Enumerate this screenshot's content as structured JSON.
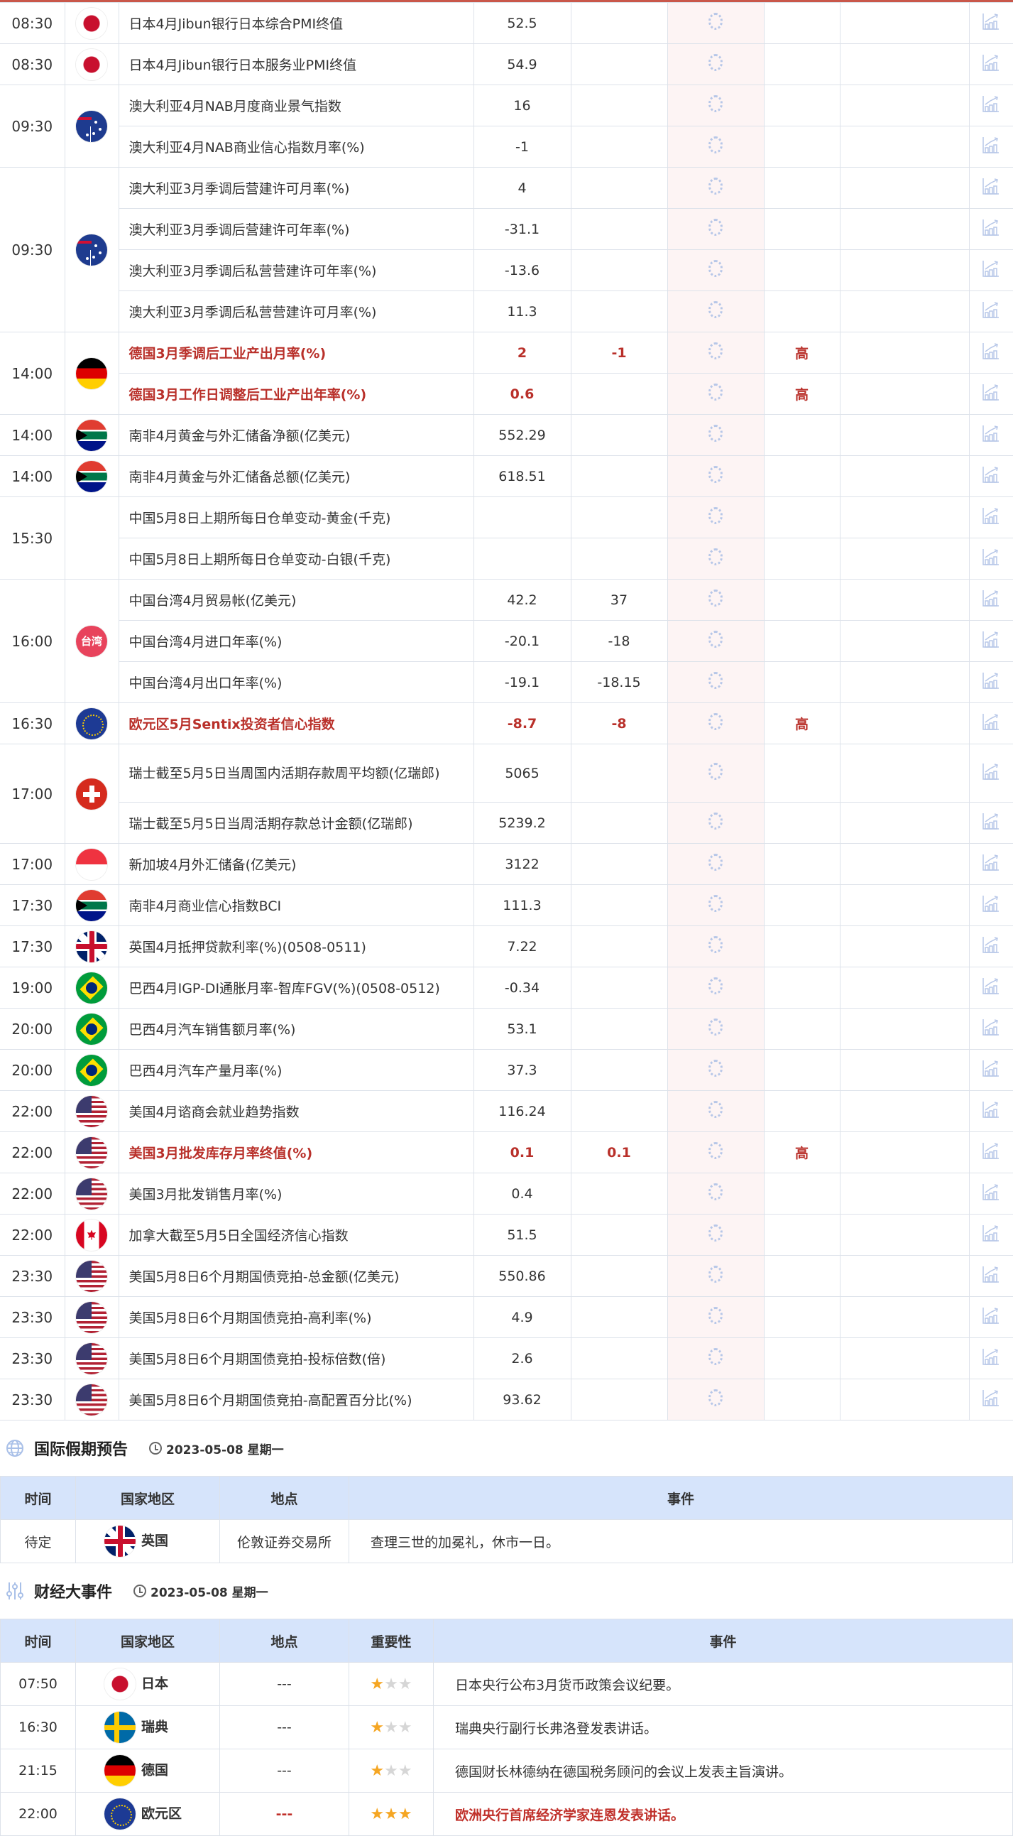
{
  "colors": {
    "accent": "#c9574a",
    "highlight": "#b9302a",
    "header_bg": "#d6e4fb",
    "star_on": "#f5a623",
    "star_off": "#d6d6d6"
  },
  "calendar": {
    "groups": [
      {
        "time": "08:30",
        "flag": "jp",
        "rows": [
          {
            "event": "日本4月Jibun银行日本综合PMI终值",
            "actual": "52.5",
            "forecast": "",
            "importance": ""
          }
        ]
      },
      {
        "time": "08:30",
        "flag": "jp",
        "rows": [
          {
            "event": "日本4月Jibun银行日本服务业PMI终值",
            "actual": "54.9",
            "forecast": "",
            "importance": ""
          }
        ]
      },
      {
        "time": "09:30",
        "flag": "au",
        "rows": [
          {
            "event": "澳大利亚4月NAB月度商业景气指数",
            "actual": "16",
            "forecast": "",
            "importance": ""
          },
          {
            "event": "澳大利亚4月NAB商业信心指数月率(%)",
            "actual": "-1",
            "forecast": "",
            "importance": ""
          }
        ]
      },
      {
        "time": "09:30",
        "flag": "au",
        "rows": [
          {
            "event": "澳大利亚3月季调后营建许可月率(%)",
            "actual": "4",
            "forecast": "",
            "importance": ""
          },
          {
            "event": "澳大利亚3月季调后营建许可年率(%)",
            "actual": "-31.1",
            "forecast": "",
            "importance": ""
          },
          {
            "event": "澳大利亚3月季调后私营营建许可年率(%)",
            "actual": "-13.6",
            "forecast": "",
            "importance": ""
          },
          {
            "event": "澳大利亚3月季调后私营营建许可月率(%)",
            "actual": "11.3",
            "forecast": "",
            "importance": ""
          }
        ]
      },
      {
        "time": "14:00",
        "flag": "de",
        "rows": [
          {
            "event": "德国3月季调后工业产出月率(%)",
            "actual": "2",
            "forecast": "-1",
            "importance": "高",
            "highlight": true
          },
          {
            "event": "德国3月工作日调整后工业产出年率(%)",
            "actual": "0.6",
            "forecast": "",
            "importance": "高",
            "highlight": true
          }
        ]
      },
      {
        "time": "14:00",
        "flag": "za",
        "rows": [
          {
            "event": "南非4月黄金与外汇储备净额(亿美元)",
            "actual": "552.29",
            "forecast": "",
            "importance": ""
          }
        ]
      },
      {
        "time": "14:00",
        "flag": "za",
        "rows": [
          {
            "event": "南非4月黄金与外汇储备总额(亿美元)",
            "actual": "618.51",
            "forecast": "",
            "importance": ""
          }
        ]
      },
      {
        "time": "15:30",
        "flag": "",
        "rows": [
          {
            "event": "中国5月8日上期所每日仓单变动-黄金(千克)",
            "actual": "",
            "forecast": "",
            "importance": ""
          },
          {
            "event": "中国5月8日上期所每日仓单变动-白银(千克)",
            "actual": "",
            "forecast": "",
            "importance": ""
          }
        ]
      },
      {
        "time": "16:00",
        "flag": "tw",
        "flag_text": "台湾",
        "rows": [
          {
            "event": "中国台湾4月贸易帐(亿美元)",
            "actual": "42.2",
            "forecast": "37",
            "importance": ""
          },
          {
            "event": "中国台湾4月进口年率(%)",
            "actual": "-20.1",
            "forecast": "-18",
            "importance": ""
          },
          {
            "event": "中国台湾4月出口年率(%)",
            "actual": "-19.1",
            "forecast": "-18.15",
            "importance": ""
          }
        ]
      },
      {
        "time": "16:30",
        "flag": "eu",
        "rows": [
          {
            "event": "欧元区5月Sentix投资者信心指数",
            "actual": "-8.7",
            "forecast": "-8",
            "importance": "高",
            "highlight": true
          }
        ]
      },
      {
        "time": "17:00",
        "flag": "ch",
        "rows": [
          {
            "event": "瑞士截至5月5日当周国内活期存款周平均额(亿瑞郎)",
            "actual": "5065",
            "forecast": "",
            "importance": "",
            "tall": true
          },
          {
            "event": "瑞士截至5月5日当周活期存款总计金额(亿瑞郎)",
            "actual": "5239.2",
            "forecast": "",
            "importance": ""
          }
        ]
      },
      {
        "time": "17:00",
        "flag": "sg",
        "rows": [
          {
            "event": "新加坡4月外汇储备(亿美元)",
            "actual": "3122",
            "forecast": "",
            "importance": ""
          }
        ]
      },
      {
        "time": "17:30",
        "flag": "za",
        "rows": [
          {
            "event": "南非4月商业信心指数BCI",
            "actual": "111.3",
            "forecast": "",
            "importance": ""
          }
        ]
      },
      {
        "time": "17:30",
        "flag": "gb",
        "rows": [
          {
            "event": "英国4月抵押贷款利率(%)(0508-0511)",
            "actual": "7.22",
            "forecast": "",
            "importance": ""
          }
        ]
      },
      {
        "time": "19:00",
        "flag": "br",
        "rows": [
          {
            "event": "巴西4月IGP-DI通胀月率-智库FGV(%)(0508-0512)",
            "actual": "-0.34",
            "forecast": "",
            "importance": ""
          }
        ]
      },
      {
        "time": "20:00",
        "flag": "br",
        "rows": [
          {
            "event": "巴西4月汽车销售额月率(%)",
            "actual": "53.1",
            "forecast": "",
            "importance": ""
          }
        ]
      },
      {
        "time": "20:00",
        "flag": "br",
        "rows": [
          {
            "event": "巴西4月汽车产量月率(%)",
            "actual": "37.3",
            "forecast": "",
            "importance": ""
          }
        ]
      },
      {
        "time": "22:00",
        "flag": "us",
        "rows": [
          {
            "event": "美国4月谘商会就业趋势指数",
            "actual": "116.24",
            "forecast": "",
            "importance": ""
          }
        ]
      },
      {
        "time": "22:00",
        "flag": "us",
        "rows": [
          {
            "event": "美国3月批发库存月率终值(%)",
            "actual": "0.1",
            "forecast": "0.1",
            "importance": "高",
            "highlight": true
          }
        ]
      },
      {
        "time": "22:00",
        "flag": "us",
        "rows": [
          {
            "event": "美国3月批发销售月率(%)",
            "actual": "0.4",
            "forecast": "",
            "importance": ""
          }
        ]
      },
      {
        "time": "22:00",
        "flag": "ca",
        "rows": [
          {
            "event": "加拿大截至5月5日全国经济信心指数",
            "actual": "51.5",
            "forecast": "",
            "importance": ""
          }
        ]
      },
      {
        "time": "23:30",
        "flag": "us",
        "rows": [
          {
            "event": "美国5月8日6个月期国债竞拍-总金额(亿美元)",
            "actual": "550.86",
            "forecast": "",
            "importance": ""
          }
        ]
      },
      {
        "time": "23:30",
        "flag": "us",
        "rows": [
          {
            "event": "美国5月8日6个月期国债竞拍-高利率(%)",
            "actual": "4.9",
            "forecast": "",
            "importance": ""
          }
        ]
      },
      {
        "time": "23:30",
        "flag": "us",
        "rows": [
          {
            "event": "美国5月8日6个月期国债竞拍-投标倍数(倍)",
            "actual": "2.6",
            "forecast": "",
            "importance": ""
          }
        ]
      },
      {
        "time": "23:30",
        "flag": "us",
        "rows": [
          {
            "event": "美国5月8日6个月期国债竞拍-高配置百分比(%)",
            "actual": "93.62",
            "forecast": "",
            "importance": ""
          }
        ]
      }
    ]
  },
  "holidays": {
    "title": "国际假期预告",
    "date": "2023-05-08 星期一",
    "icon": "globe-icon",
    "headers": [
      "时间",
      "国家地区",
      "地点",
      "事件"
    ],
    "rows": [
      {
        "time": "待定",
        "flag": "gb",
        "country": "英国",
        "place": "伦敦证券交易所",
        "event": "查理三世的加冕礼，休市一日。"
      }
    ]
  },
  "events": {
    "title": "财经大事件",
    "date": "2023-05-08 星期一",
    "icon": "sliders-icon",
    "headers": [
      "时间",
      "国家地区",
      "地点",
      "重要性",
      "事件"
    ],
    "rows": [
      {
        "time": "07:50",
        "flag": "jp",
        "country": "日本",
        "place": "---",
        "stars": 1,
        "event": "日本央行公布3月货币政策会议纪要。"
      },
      {
        "time": "16:30",
        "flag": "se",
        "country": "瑞典",
        "place": "---",
        "stars": 1,
        "event": "瑞典央行副行长弗洛登发表讲话。"
      },
      {
        "time": "21:15",
        "flag": "de",
        "country": "德国",
        "place": "---",
        "stars": 1,
        "event": "德国财长林德纳在德国税务顾问的会议上发表主旨演讲。"
      },
      {
        "time": "22:00",
        "flag": "eu",
        "country": "欧元区",
        "place": "---",
        "stars": 3,
        "event": "欧洲央行首席经济学家连恩发表讲话。",
        "highlight": true
      }
    ]
  }
}
